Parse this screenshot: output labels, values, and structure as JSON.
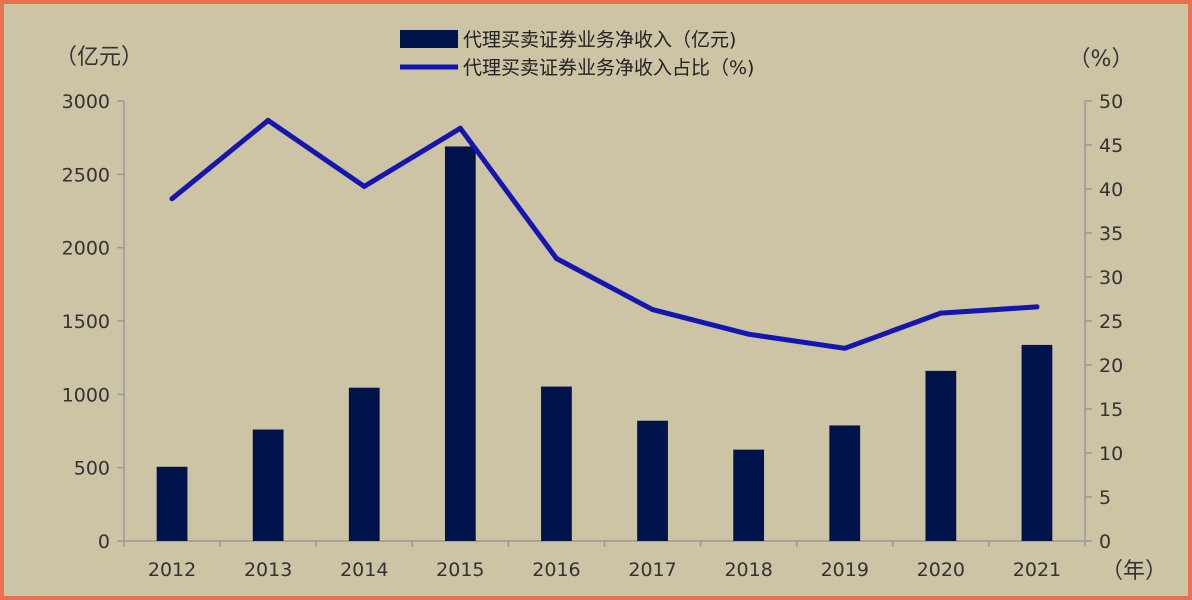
{
  "chart_data": {
    "type": "bar+line",
    "categories": [
      "2012",
      "2013",
      "2014",
      "2015",
      "2016",
      "2017",
      "2018",
      "2019",
      "2020",
      "2021"
    ],
    "series": [
      {
        "name": "代理买卖证券业务净收入（亿元)",
        "type": "bar",
        "axis": "left",
        "color": "#00134a",
        "values": [
          506,
          760,
          1045,
          2690,
          1053,
          820,
          623,
          788,
          1160,
          1337
        ]
      },
      {
        "name": "代理买卖证券业务净收入占比（%)",
        "type": "line",
        "axis": "right",
        "color": "#1515b0",
        "values": [
          38.9,
          47.8,
          40.3,
          46.9,
          32.1,
          26.3,
          23.5,
          21.9,
          25.9,
          26.6
        ]
      }
    ],
    "y_left": {
      "label": "（亿元）",
      "min": 0,
      "max": 3000,
      "ticks": [
        0,
        500,
        1000,
        1500,
        2000,
        2500,
        3000
      ]
    },
    "y_right": {
      "label": "（%）",
      "min": 0,
      "max": 50,
      "ticks": [
        0,
        5,
        10,
        15,
        20,
        25,
        30,
        35,
        40,
        45,
        50
      ]
    },
    "x_unit": "（年）",
    "legend_position": "top-center",
    "grid": false
  },
  "colors": {
    "background": "#cdc3a5",
    "border": "#e8714f",
    "axis": "#9a9a9a"
  }
}
